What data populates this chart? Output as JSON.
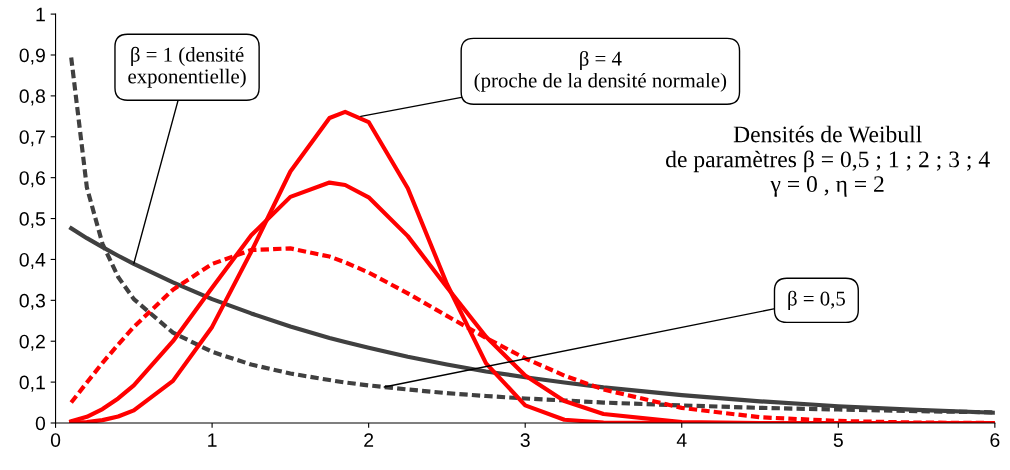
{
  "chart_data": {
    "type": "line",
    "x": [
      0.1,
      0.2,
      0.3,
      0.4,
      0.5,
      0.75,
      1,
      1.25,
      1.5,
      1.75,
      1.85,
      2,
      2.25,
      2.5,
      2.75,
      3,
      3.25,
      3.5,
      4,
      4.5,
      5,
      5.5,
      6
    ],
    "series": [
      {
        "color": "#404040",
        "line_style": "dashed",
        "values": [
          0.894,
          0.576,
          0.438,
          0.357,
          0.303,
          0.221,
          0.174,
          0.143,
          0.121,
          0.105,
          0.099,
          0.092,
          0.082,
          0.073,
          0.066,
          0.06,
          0.055,
          0.05,
          0.043,
          0.037,
          0.033,
          0.029,
          0.026
        ]
      },
      {
        "color": "#404040",
        "line_style": "solid",
        "values": [
          0.476,
          0.452,
          0.43,
          0.409,
          0.389,
          0.344,
          0.303,
          0.268,
          0.236,
          0.208,
          0.198,
          0.184,
          0.162,
          0.143,
          0.126,
          0.112,
          0.099,
          0.087,
          0.068,
          0.053,
          0.041,
          0.032,
          0.025
        ]
      },
      {
        "color": "#ff0000",
        "line_style": "dashed",
        "values": [
          0.05,
          0.099,
          0.147,
          0.192,
          0.235,
          0.326,
          0.389,
          0.423,
          0.427,
          0.407,
          0.393,
          0.368,
          0.317,
          0.262,
          0.208,
          0.158,
          0.116,
          0.082,
          0.037,
          0.014,
          0.005,
          0.001,
          0.0
        ]
      },
      {
        "color": "#ff0000",
        "line_style": "solid",
        "values": [
          0.004,
          0.015,
          0.034,
          0.06,
          0.092,
          0.2,
          0.331,
          0.459,
          0.553,
          0.588,
          0.582,
          0.552,
          0.457,
          0.332,
          0.211,
          0.116,
          0.054,
          0.022,
          0.002,
          0.0,
          0.0,
          0.0,
          0.0
        ]
      },
      {
        "color": "#ff0000",
        "line_style": "solid",
        "x": [
          0.1,
          0.2,
          0.3,
          0.4,
          0.5,
          0.75,
          1,
          1.25,
          1.5,
          1.75,
          1.85,
          2,
          2.25,
          2.5,
          2.75,
          3,
          3.25,
          3.5,
          4
        ],
        "values": [
          0.0,
          0.002,
          0.007,
          0.016,
          0.031,
          0.103,
          0.235,
          0.419,
          0.615,
          0.746,
          0.761,
          0.736,
          0.574,
          0.34,
          0.146,
          0.043,
          0.008,
          0.001,
          0.0
        ]
      }
    ],
    "xlim": [
      0,
      6
    ],
    "ylim": [
      0,
      1
    ],
    "xticks": [
      0,
      1,
      2,
      3,
      4,
      5,
      6
    ],
    "yticks": [
      0,
      {
        "value": 0.1,
        "label": "0,1"
      },
      {
        "value": 0.2,
        "label": "0,2"
      },
      {
        "value": 0.3,
        "label": "0,3"
      },
      {
        "value": 0.4,
        "label": "0,4"
      },
      {
        "value": 0.5,
        "label": "0,5"
      },
      {
        "value": 0.6,
        "label": "0,6"
      },
      {
        "value": 0.7,
        "label": "0,7"
      },
      {
        "value": 0.8,
        "label": "0,8"
      },
      {
        "value": 0.9,
        "label": "0,9"
      },
      1
    ],
    "grid": false,
    "legend": false,
    "marker": "none",
    "annotations": [
      {
        "text": "β = 1 (densité\nexponentielle)",
        "x": 0.5,
        "y": 0.39
      },
      {
        "text": "β = 4\n(proche de la densité normale)",
        "x": 1.95,
        "y": 0.75
      },
      {
        "text": "β = 0,5",
        "x": 2.1,
        "y": 0.088
      },
      "Densités de Weibull\nde paramètres β = 0,5 ; 1 ; 2 ; 3 ; 4\nγ = 0 , η = 2"
    ]
  }
}
